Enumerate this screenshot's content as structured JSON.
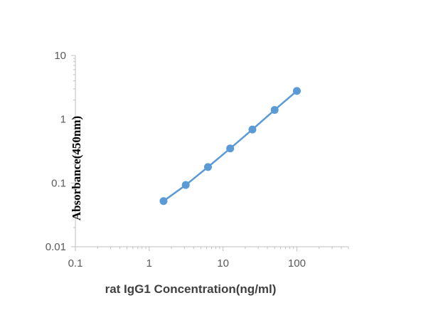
{
  "chart_data": {
    "type": "line",
    "title": "",
    "xlabel": "rat IgG1 Concentration(ng/ml)",
    "ylabel": "Absorbance(450nm)",
    "x_scale": "log",
    "y_scale": "log",
    "xlim": [
      0.1,
      500
    ],
    "ylim": [
      0.01,
      10
    ],
    "x_ticks": [
      0.1,
      1,
      10,
      100
    ],
    "x_tick_labels": [
      "0.1",
      "1",
      "10",
      "100"
    ],
    "y_ticks": [
      0.01,
      0.1,
      1,
      10
    ],
    "y_tick_labels": [
      "0.01",
      "0.1",
      "1",
      "10"
    ],
    "grid": false,
    "legend": "none",
    "series": [
      {
        "color": "#5b9bd5",
        "x": [
          1.5625,
          3.125,
          6.25,
          12.5,
          25,
          50,
          100
        ],
        "y": [
          0.052,
          0.093,
          0.178,
          0.348,
          0.69,
          1.4,
          2.78
        ]
      }
    ]
  }
}
